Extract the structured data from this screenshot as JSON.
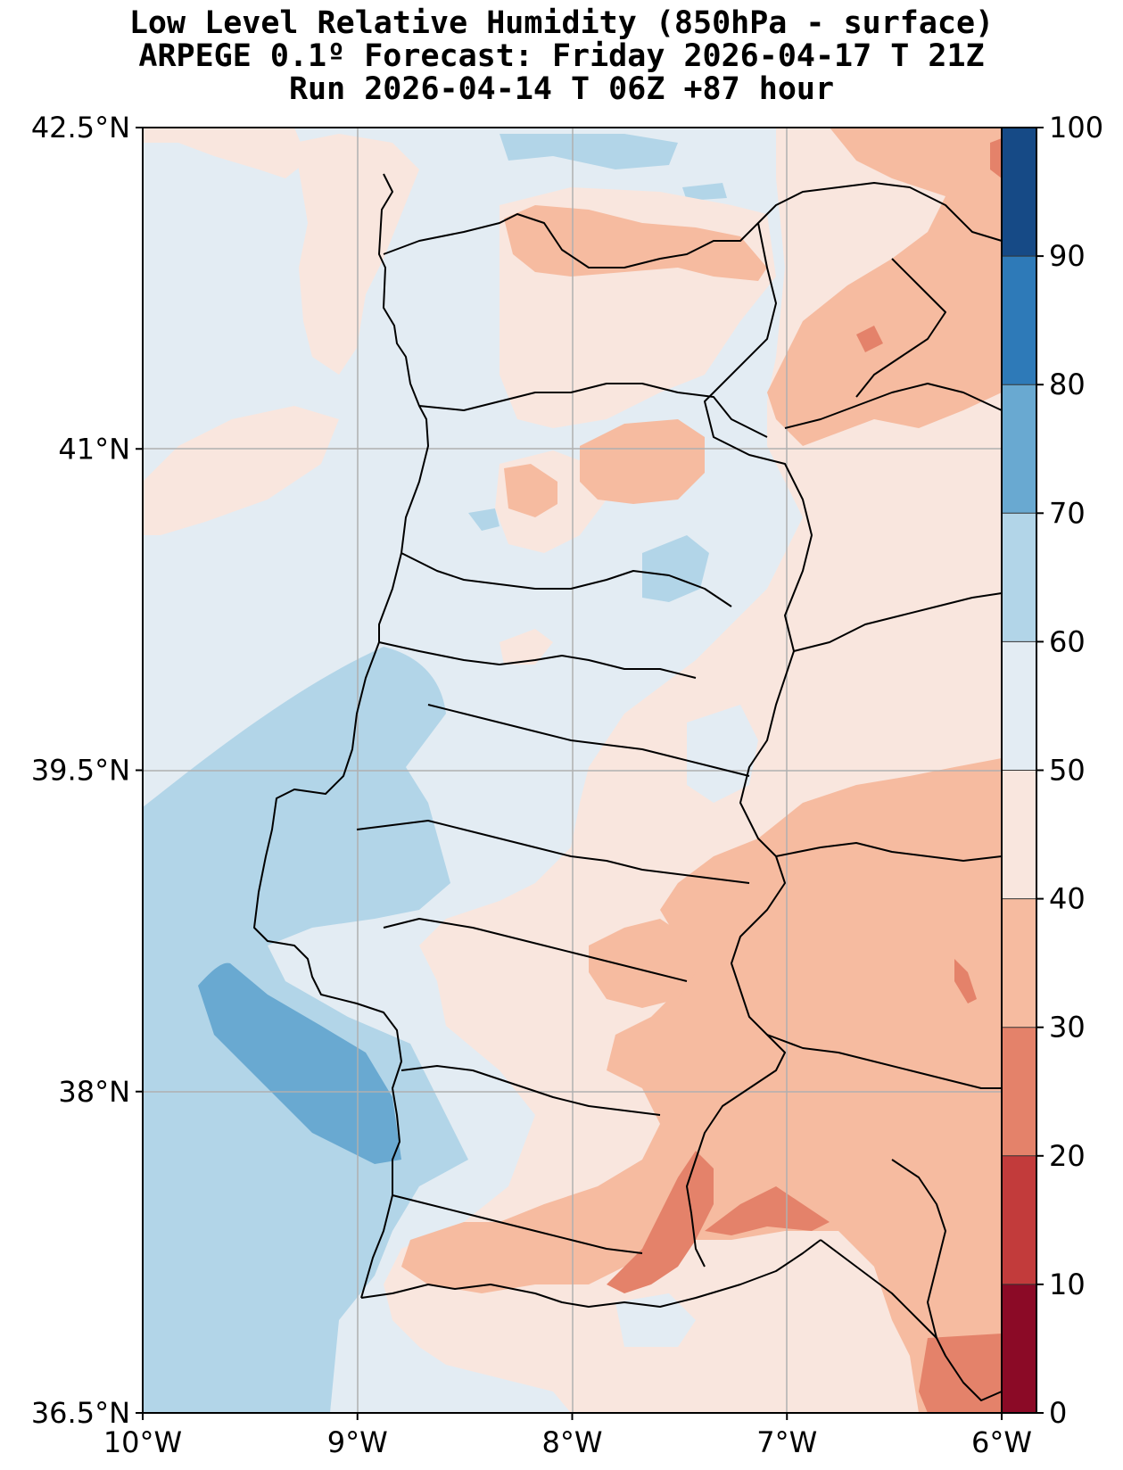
{
  "title": {
    "line1": "Low Level Relative Humidity (850hPa - surface)",
    "line2": "ARPEGE 0.1º Forecast: Friday 2026-04-17 T 21Z",
    "line3": "Run 2026-04-14 T 06Z +87 hour"
  },
  "map": {
    "lat_ticks": [
      {
        "value": 42.5,
        "label": "42.5°N"
      },
      {
        "value": 41.0,
        "label": "41°N"
      },
      {
        "value": 39.5,
        "label": "39.5°N"
      },
      {
        "value": 38.0,
        "label": "38°N"
      },
      {
        "value": 36.5,
        "label": "36.5°N"
      }
    ],
    "lon_ticks": [
      {
        "value": -10,
        "label": "10°W"
      },
      {
        "value": -9,
        "label": "9°W"
      },
      {
        "value": -8,
        "label": "8°W"
      },
      {
        "value": -7,
        "label": "7°W"
      },
      {
        "value": -6,
        "label": "6°W"
      }
    ],
    "extent": {
      "lon_min": -10,
      "lon_max": -6,
      "lat_min": 36.5,
      "lat_max": 42.5
    }
  },
  "colorbar": {
    "levels": [
      {
        "value": 0,
        "label": "0",
        "color": "#8b0a26"
      },
      {
        "value": 10,
        "label": "10",
        "color": "#c23b3b"
      },
      {
        "value": 20,
        "label": "20",
        "color": "#e4826a"
      },
      {
        "value": 30,
        "label": "30",
        "color": "#f6bba0"
      },
      {
        "value": 40,
        "label": "40",
        "color": "#f9e6de"
      },
      {
        "value": 50,
        "label": "50",
        "color": "#e3ecf3"
      },
      {
        "value": 60,
        "label": "60",
        "color": "#b2d5e8"
      },
      {
        "value": 70,
        "label": "70",
        "color": "#69a9d1"
      },
      {
        "value": 80,
        "label": "80",
        "color": "#2e7ab8"
      },
      {
        "value": 90,
        "label": "90",
        "color": "#164a86"
      },
      {
        "value": 100,
        "label": "100",
        "color": ""
      }
    ]
  }
}
